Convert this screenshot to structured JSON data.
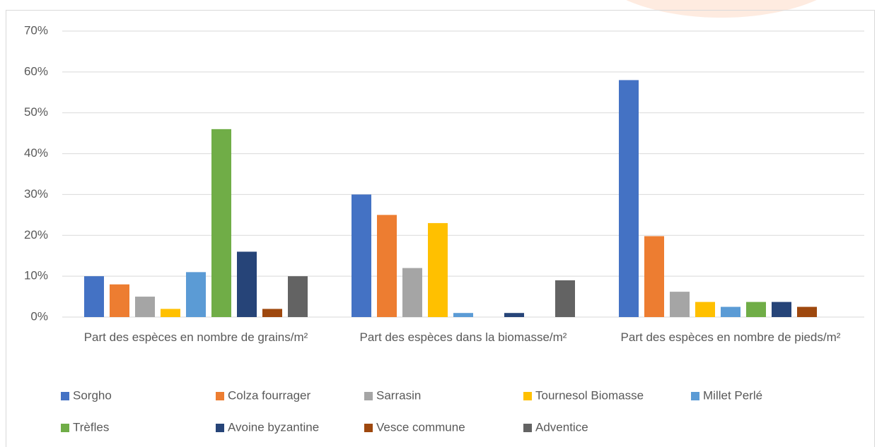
{
  "chart_data": {
    "type": "bar",
    "categories": [
      "Part des espèces en nombre de grains/m²",
      "Part des espèces dans la biomasse/m²",
      "Part des espèces en nombre de pieds/m²"
    ],
    "series": [
      {
        "name": "Sorgho",
        "color": "#4472c4",
        "values": [
          10,
          30,
          58
        ]
      },
      {
        "name": "Colza fourrager",
        "color": "#ed7d31",
        "values": [
          8,
          25,
          19.8
        ]
      },
      {
        "name": "Sarrasin",
        "color": "#a5a5a5",
        "values": [
          5,
          12,
          6.2
        ]
      },
      {
        "name": "Tournesol Biomasse",
        "color": "#ffc000",
        "values": [
          2,
          23,
          3.7
        ]
      },
      {
        "name": "Millet Perlé",
        "color": "#5b9bd5",
        "values": [
          11,
          1,
          2.5
        ]
      },
      {
        "name": "Trèfles",
        "color": "#70ad47",
        "values": [
          46,
          0,
          3.7
        ]
      },
      {
        "name": "Avoine byzantine",
        "color": "#264478",
        "values": [
          16,
          1,
          3.7
        ]
      },
      {
        "name": "Vesce commune",
        "color": "#9e480e",
        "values": [
          2,
          0,
          2.5
        ]
      },
      {
        "name": "Adventice",
        "color": "#636363",
        "values": [
          10,
          9,
          0
        ]
      }
    ],
    "ylim": [
      0,
      70
    ],
    "yticks": [
      {
        "value": 0,
        "label": "0%"
      },
      {
        "value": 10,
        "label": "10%"
      },
      {
        "value": 20,
        "label": "20%"
      },
      {
        "value": 30,
        "label": "30%"
      },
      {
        "value": 40,
        "label": "40%"
      },
      {
        "value": 50,
        "label": "50%"
      },
      {
        "value": 60,
        "label": "60%"
      },
      {
        "value": 70,
        "label": "70%"
      }
    ],
    "grid": true,
    "legend": "bottom"
  }
}
